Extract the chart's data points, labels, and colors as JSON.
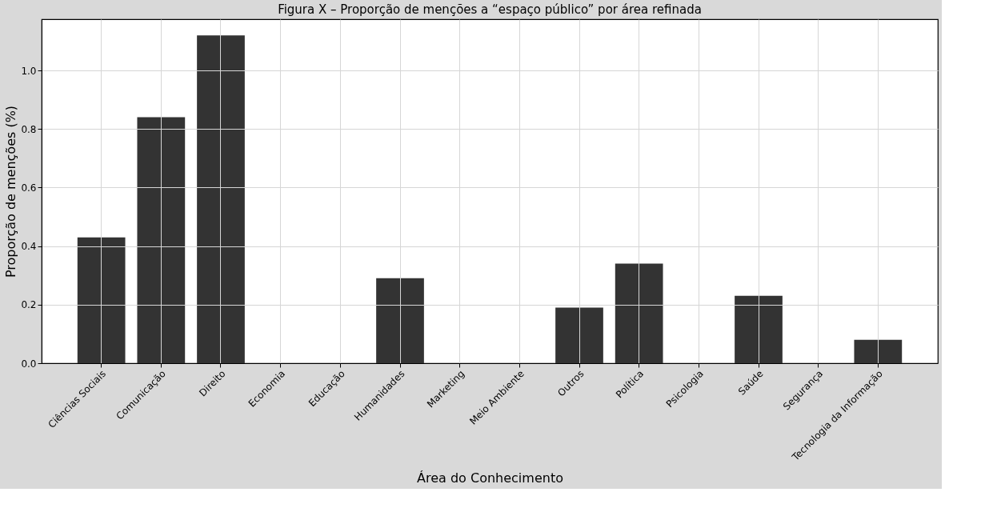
{
  "chart_data": {
    "type": "bar",
    "title": "Figura X – Proporção de menções a “espaço público” por área refinada",
    "xlabel": "Área do Conhecimento",
    "ylabel": "Proporção de menções (%)",
    "categories": [
      "Ciências Sociais",
      "Comunicação",
      "Direito",
      "Economia",
      "Educação",
      "Humanidades",
      "Marketing",
      "Meio Ambiente",
      "Outros",
      "Política",
      "Psicologia",
      "Saúde",
      "Segurança",
      "Tecnologia da Informação"
    ],
    "values": [
      0.43,
      0.84,
      1.12,
      0,
      0,
      0.29,
      0,
      0,
      0.19,
      0.34,
      0,
      0.23,
      0,
      0.08
    ],
    "color": "#333333",
    "ylim": [
      0,
      1.175
    ],
    "yticks": [
      {
        "value": 0,
        "label": "0.0"
      },
      {
        "value": 0.2,
        "label": "0.2"
      },
      {
        "value": 0.4,
        "label": "0.4"
      },
      {
        "value": 0.6,
        "label": "0.6"
      },
      {
        "value": 0.8,
        "label": "0.8"
      },
      {
        "value": 1,
        "label": "1.0"
      }
    ],
    "grid": true
  }
}
